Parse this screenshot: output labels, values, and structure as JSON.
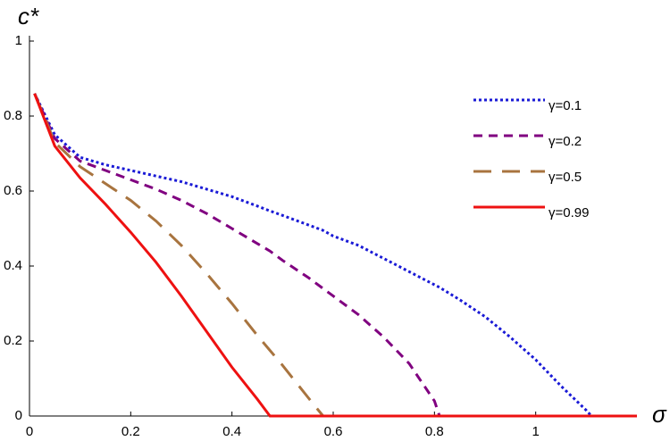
{
  "chart_data": {
    "type": "line",
    "x_label": "σ",
    "y_label": "c*",
    "x": [
      0.01,
      0.05,
      0.1,
      0.15,
      0.2,
      0.25,
      0.3,
      0.35,
      0.4,
      0.45,
      0.475,
      0.5,
      0.55,
      0.58,
      0.6,
      0.65,
      0.7,
      0.75,
      0.8,
      0.81,
      0.85,
      0.9,
      0.95,
      1.0,
      1.05,
      1.1,
      1.11,
      1.15,
      1.2
    ],
    "series": [
      {
        "name": "γ=0.1",
        "color": "#1a1ad6",
        "dash": "3,3",
        "values": [
          0.86,
          0.75,
          0.69,
          0.67,
          0.655,
          0.64,
          0.625,
          0.605,
          0.585,
          0.56,
          0.547,
          0.535,
          0.51,
          0.495,
          0.48,
          0.455,
          0.42,
          0.385,
          0.35,
          0.343,
          0.31,
          0.265,
          0.21,
          0.15,
          0.08,
          0.015,
          0,
          0,
          0
        ]
      },
      {
        "name": "γ=0.2",
        "color": "#800080",
        "dash": "10,7",
        "values": [
          0.86,
          0.74,
          0.68,
          0.655,
          0.63,
          0.605,
          0.575,
          0.54,
          0.5,
          0.46,
          0.44,
          0.415,
          0.37,
          0.34,
          0.32,
          0.27,
          0.21,
          0.14,
          0.04,
          0,
          0,
          0,
          0,
          0,
          0,
          0,
          0,
          0,
          0
        ]
      },
      {
        "name": "γ=0.5",
        "color": "#a8743f",
        "dash": "20,12",
        "values": [
          0.86,
          0.73,
          0.665,
          0.62,
          0.575,
          0.52,
          0.455,
          0.38,
          0.3,
          0.215,
          0.175,
          0.135,
          0.05,
          0,
          0,
          0,
          0,
          0,
          0,
          0,
          0,
          0,
          0,
          0,
          0,
          0,
          0,
          0,
          0
        ]
      },
      {
        "name": "γ=0.99",
        "color": "#ee1111",
        "dash": "none",
        "values": [
          0.86,
          0.72,
          0.635,
          0.565,
          0.49,
          0.41,
          0.32,
          0.225,
          0.13,
          0.045,
          0,
          0,
          0,
          0,
          0,
          0,
          0,
          0,
          0,
          0,
          0,
          0,
          0,
          0,
          0,
          0,
          0,
          0,
          0
        ]
      }
    ],
    "xlim": [
      0,
      1.2
    ],
    "ylim": [
      0,
      1
    ],
    "xticks": [
      0,
      0.2,
      0.4,
      0.6,
      0.8,
      1
    ],
    "yticks": [
      0,
      0.2,
      0.4,
      0.6,
      0.8,
      1
    ],
    "legend": "upper right"
  }
}
